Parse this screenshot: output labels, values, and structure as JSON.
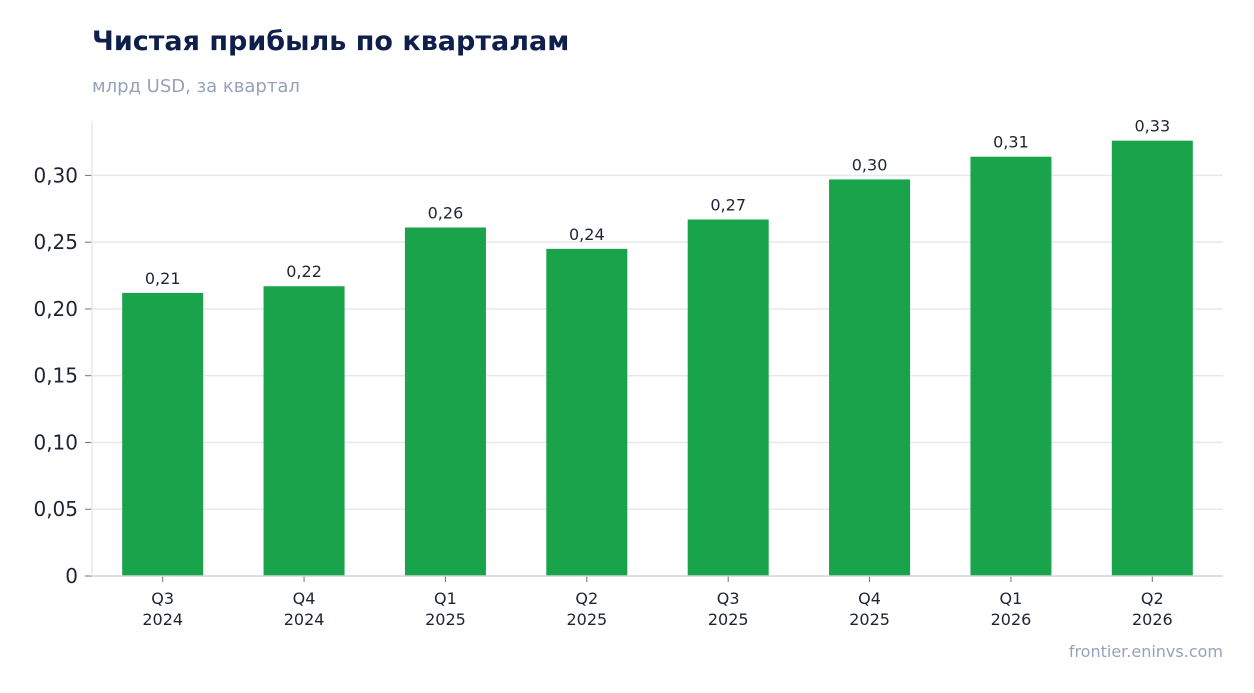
{
  "title": "Чистая прибыль по кварталам",
  "subtitle": "млрд USD, за квартал",
  "source": "frontier.eninvs.com",
  "colors": {
    "bar": "#19a34a",
    "grid": "#e5e8ee",
    "axis": "#cfd4dc",
    "title": "#0f1f4b",
    "muted": "#94a3b8"
  },
  "chart_data": {
    "type": "bar",
    "title": "Чистая прибыль по кварталам",
    "subtitle": "млрд USD, за квартал",
    "categories": [
      [
        "Q3",
        "2024"
      ],
      [
        "Q4",
        "2024"
      ],
      [
        "Q1",
        "2025"
      ],
      [
        "Q2",
        "2025"
      ],
      [
        "Q3",
        "2025"
      ],
      [
        "Q4",
        "2025"
      ],
      [
        "Q1",
        "2026"
      ],
      [
        "Q2",
        "2026"
      ]
    ],
    "values": [
      0.212,
      0.217,
      0.261,
      0.245,
      0.267,
      0.297,
      0.314,
      0.326
    ],
    "data_labels": [
      "0,21",
      "0,22",
      "0,26",
      "0,24",
      "0,27",
      "0,30",
      "0,31",
      "0,33"
    ],
    "ylim": [
      0,
      0.34
    ],
    "yticks": [
      0,
      0.05,
      0.1,
      0.15,
      0.2,
      0.25,
      0.3
    ],
    "ytick_labels": [
      "0",
      "0,05",
      "0,10",
      "0,15",
      "0,20",
      "0,25",
      "0,30"
    ],
    "grid": true,
    "legend": "none"
  }
}
